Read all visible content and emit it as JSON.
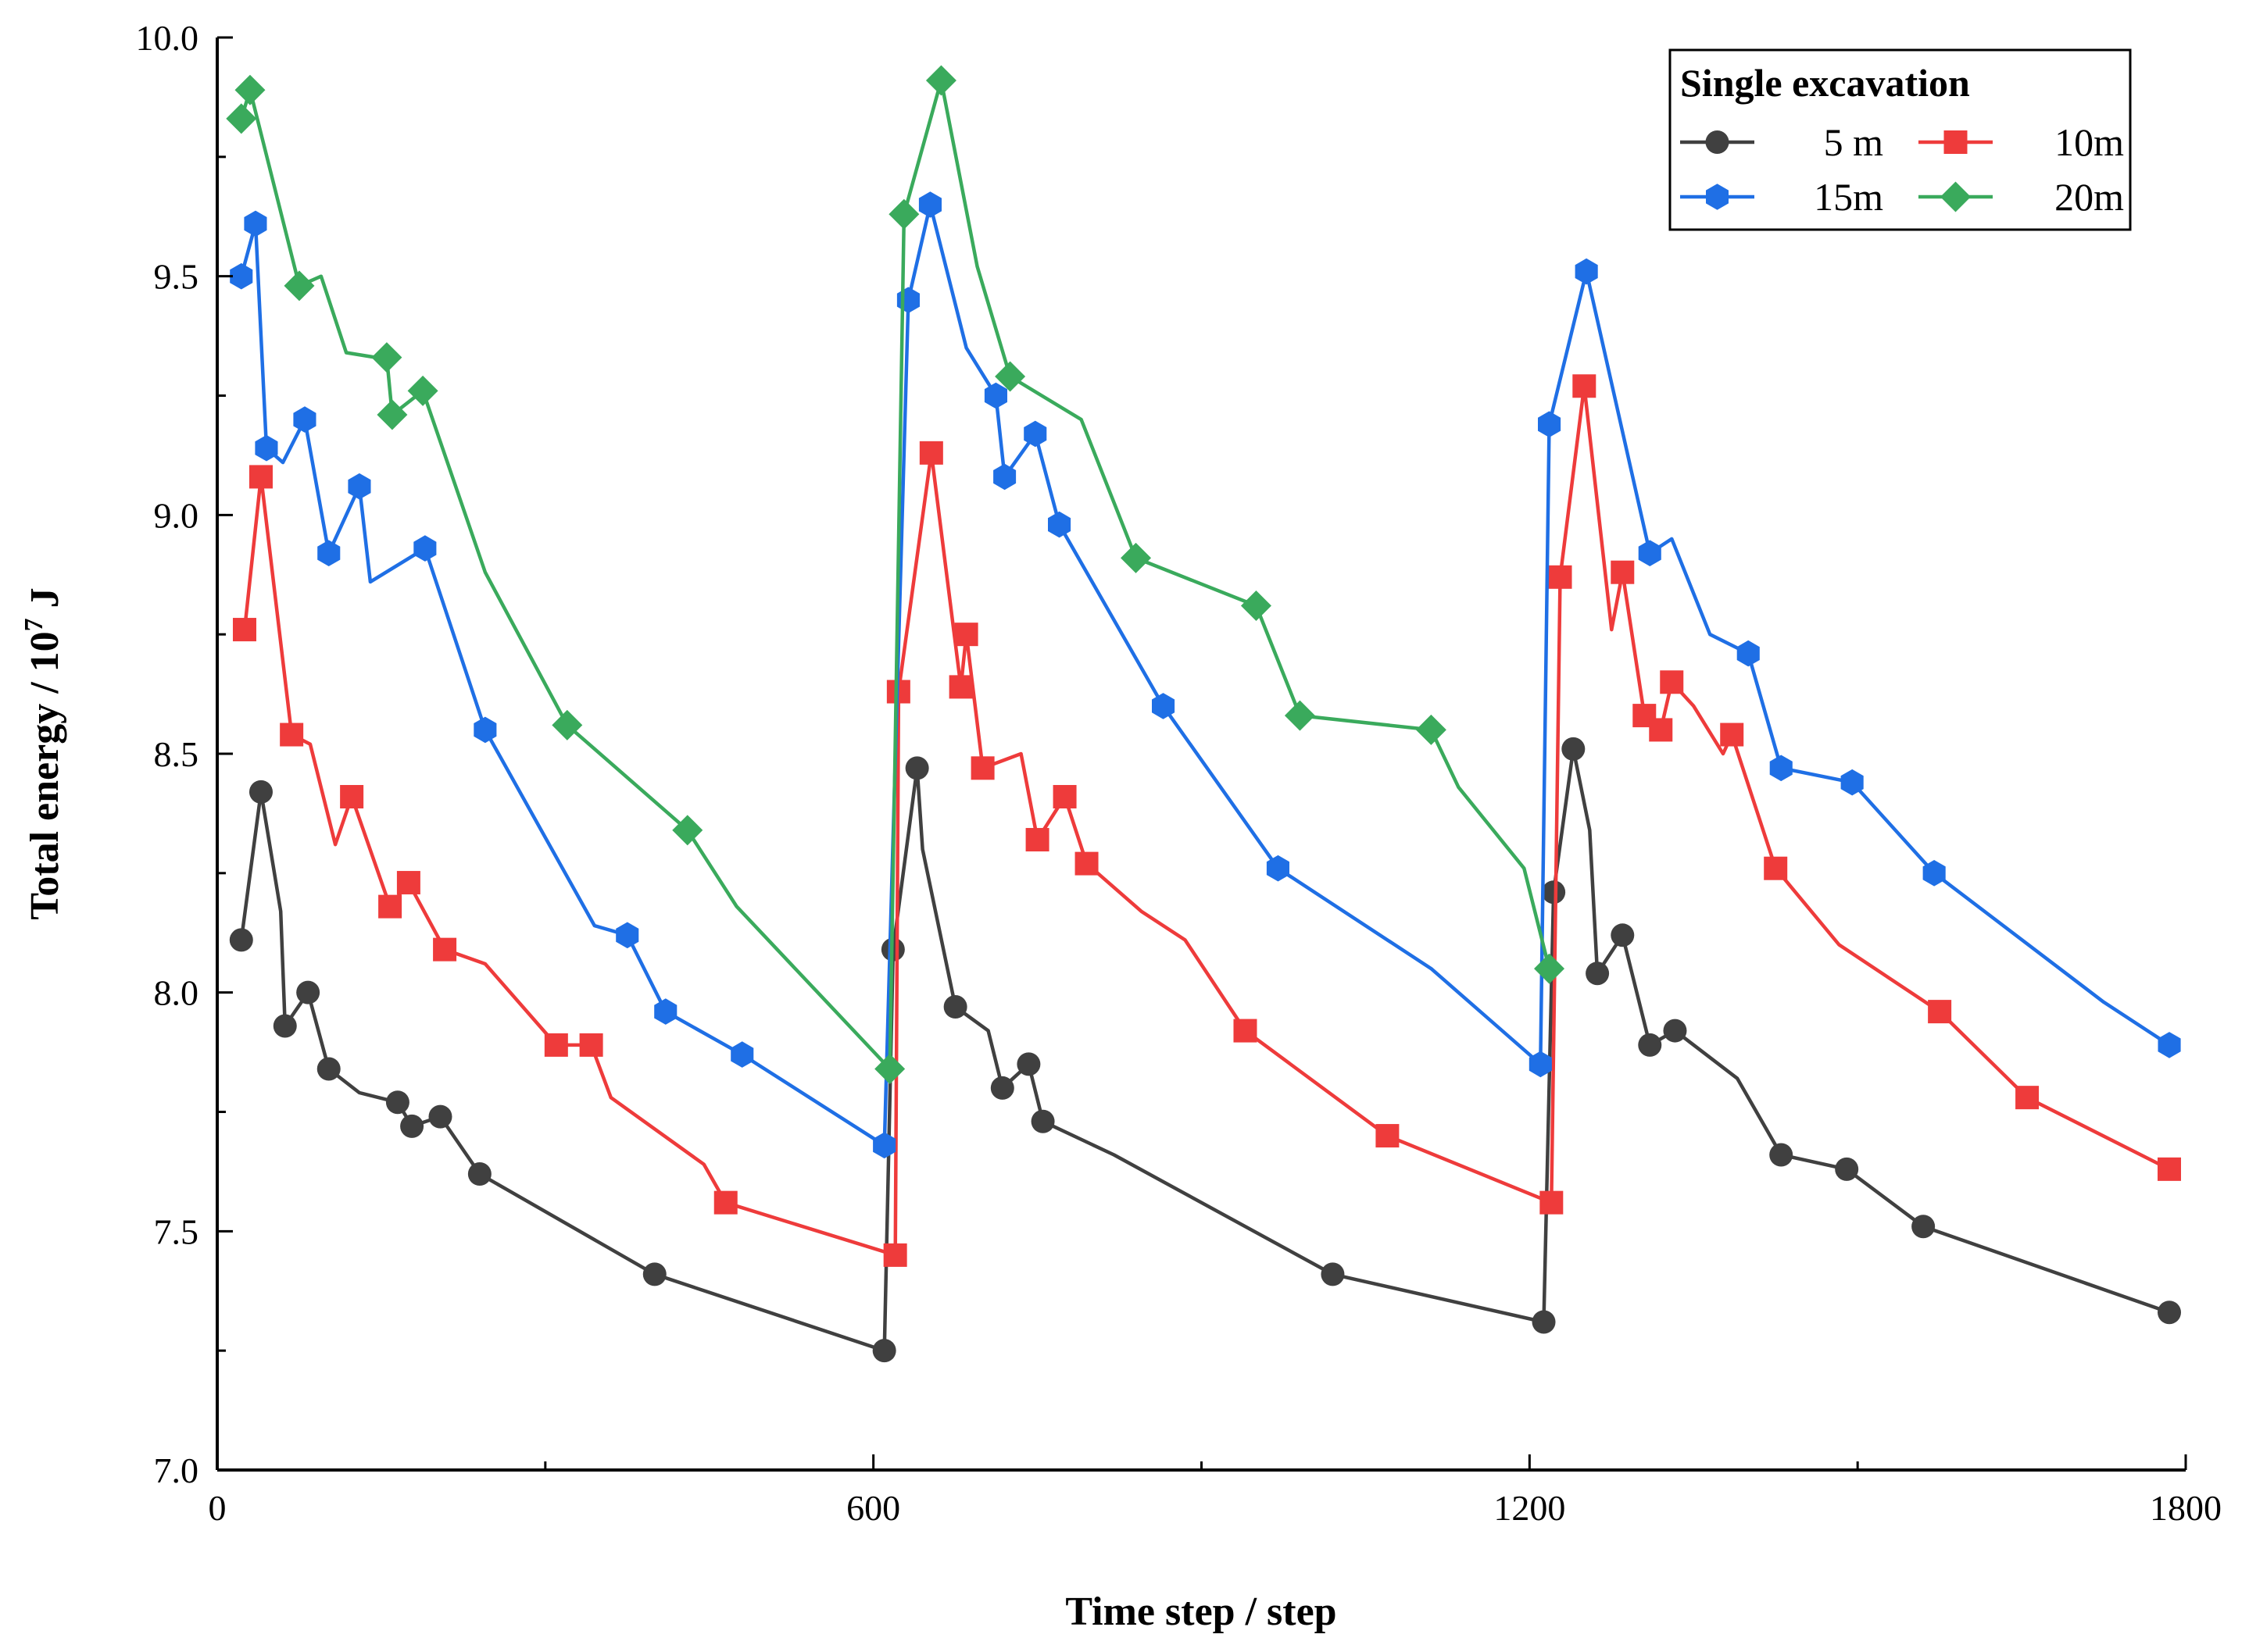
{
  "chart_data": {
    "type": "line",
    "title": "",
    "xlabel": "Time step / step",
    "ylabel_main": "Total energy / 10",
    "ylabel_exp": "7",
    "ylabel_unit": " J",
    "xlim": [
      0,
      1800
    ],
    "ylim": [
      7.0,
      10.0
    ],
    "xticks": [
      "0",
      "600",
      "1200",
      "1800"
    ],
    "yticks": [
      "7.0",
      "7.5",
      "8.0",
      "8.5",
      "9.0",
      "9.5",
      "10.0"
    ],
    "grid": false,
    "legend": {
      "title": "Single excavation",
      "position": "top-right"
    },
    "series": [
      {
        "name": "5 m",
        "color": "#404040",
        "marker": "circle",
        "line": [
          [
            22,
            8.11
          ],
          [
            40,
            8.42
          ],
          [
            58,
            8.17
          ],
          [
            62,
            7.93
          ],
          [
            83,
            8.0
          ],
          [
            102,
            7.84
          ],
          [
            130,
            7.79
          ],
          [
            165,
            7.77
          ],
          [
            178,
            7.72
          ],
          [
            204,
            7.74
          ],
          [
            240,
            7.62
          ],
          [
            400,
            7.41
          ],
          [
            610,
            7.25
          ],
          [
            618,
            8.09
          ],
          [
            640,
            8.47
          ],
          [
            645,
            8.3
          ],
          [
            675,
            7.97
          ],
          [
            705,
            7.92
          ],
          [
            718,
            7.8
          ],
          [
            742,
            7.85
          ],
          [
            755,
            7.73
          ],
          [
            820,
            7.66
          ],
          [
            1020,
            7.41
          ],
          [
            1213,
            7.31
          ],
          [
            1222,
            8.21
          ],
          [
            1240,
            8.51
          ],
          [
            1255,
            8.34
          ],
          [
            1262,
            8.04
          ],
          [
            1285,
            8.12
          ],
          [
            1310,
            7.89
          ],
          [
            1333,
            7.92
          ],
          [
            1390,
            7.82
          ],
          [
            1430,
            7.66
          ],
          [
            1490,
            7.63
          ],
          [
            1560,
            7.51
          ],
          [
            1785,
            7.33
          ]
        ],
        "markers": [
          [
            22,
            8.11
          ],
          [
            40,
            8.42
          ],
          [
            62,
            7.93
          ],
          [
            83,
            8.0
          ],
          [
            102,
            7.84
          ],
          [
            165,
            7.77
          ],
          [
            178,
            7.72
          ],
          [
            204,
            7.74
          ],
          [
            240,
            7.62
          ],
          [
            400,
            7.41
          ],
          [
            610,
            7.25
          ],
          [
            618,
            8.09
          ],
          [
            640,
            8.47
          ],
          [
            675,
            7.97
          ],
          [
            718,
            7.8
          ],
          [
            742,
            7.85
          ],
          [
            755,
            7.73
          ],
          [
            1020,
            7.41
          ],
          [
            1213,
            7.31
          ],
          [
            1222,
            8.21
          ],
          [
            1240,
            8.51
          ],
          [
            1262,
            8.04
          ],
          [
            1285,
            8.12
          ],
          [
            1310,
            7.89
          ],
          [
            1333,
            7.92
          ],
          [
            1430,
            7.66
          ],
          [
            1490,
            7.63
          ],
          [
            1560,
            7.51
          ],
          [
            1785,
            7.33
          ]
        ]
      },
      {
        "name": "10m",
        "color": "#ee3b3b",
        "marker": "square",
        "line": [
          [
            25,
            8.76
          ],
          [
            40,
            9.08
          ],
          [
            68,
            8.54
          ],
          [
            85,
            8.52
          ],
          [
            108,
            8.31
          ],
          [
            123,
            8.41
          ],
          [
            158,
            8.18
          ],
          [
            175,
            8.23
          ],
          [
            208,
            8.09
          ],
          [
            245,
            8.06
          ],
          [
            310,
            7.89
          ],
          [
            342,
            7.89
          ],
          [
            360,
            7.78
          ],
          [
            445,
            7.64
          ],
          [
            465,
            7.56
          ],
          [
            620,
            7.45
          ],
          [
            623,
            8.63
          ],
          [
            653,
            9.13
          ],
          [
            680,
            8.64
          ],
          [
            685,
            8.75
          ],
          [
            700,
            8.47
          ],
          [
            735,
            8.5
          ],
          [
            750,
            8.32
          ],
          [
            775,
            8.41
          ],
          [
            795,
            8.27
          ],
          [
            845,
            8.17
          ],
          [
            885,
            8.11
          ],
          [
            940,
            7.92
          ],
          [
            1070,
            7.7
          ],
          [
            1220,
            7.56
          ],
          [
            1228,
            8.87
          ],
          [
            1250,
            9.27
          ],
          [
            1275,
            8.76
          ],
          [
            1285,
            8.88
          ],
          [
            1305,
            8.58
          ],
          [
            1320,
            8.55
          ],
          [
            1330,
            8.65
          ],
          [
            1350,
            8.6
          ],
          [
            1377,
            8.5
          ],
          [
            1385,
            8.54
          ],
          [
            1425,
            8.26
          ],
          [
            1483,
            8.1
          ],
          [
            1575,
            7.96
          ],
          [
            1655,
            7.78
          ],
          [
            1785,
            7.63
          ]
        ],
        "markers": [
          [
            25,
            8.76
          ],
          [
            40,
            9.08
          ],
          [
            68,
            8.54
          ],
          [
            123,
            8.41
          ],
          [
            158,
            8.18
          ],
          [
            175,
            8.23
          ],
          [
            208,
            8.09
          ],
          [
            310,
            7.89
          ],
          [
            342,
            7.89
          ],
          [
            465,
            7.56
          ],
          [
            620,
            7.45
          ],
          [
            623,
            8.63
          ],
          [
            653,
            9.13
          ],
          [
            680,
            8.64
          ],
          [
            685,
            8.75
          ],
          [
            700,
            8.47
          ],
          [
            750,
            8.32
          ],
          [
            775,
            8.41
          ],
          [
            795,
            8.27
          ],
          [
            940,
            7.92
          ],
          [
            1070,
            7.7
          ],
          [
            1220,
            7.56
          ],
          [
            1228,
            8.87
          ],
          [
            1250,
            9.27
          ],
          [
            1285,
            8.88
          ],
          [
            1305,
            8.58
          ],
          [
            1320,
            8.55
          ],
          [
            1330,
            8.65
          ],
          [
            1385,
            8.54
          ],
          [
            1425,
            8.26
          ],
          [
            1575,
            7.96
          ],
          [
            1655,
            7.78
          ],
          [
            1785,
            7.63
          ]
        ]
      },
      {
        "name": "15m",
        "color": "#1f6fe5",
        "marker": "hexagon",
        "line": [
          [
            22,
            9.5
          ],
          [
            35,
            9.61
          ],
          [
            45,
            9.14
          ],
          [
            60,
            9.11
          ],
          [
            80,
            9.2
          ],
          [
            102,
            8.92
          ],
          [
            130,
            9.06
          ],
          [
            140,
            8.86
          ],
          [
            190,
            8.93
          ],
          [
            245,
            8.55
          ],
          [
            345,
            8.14
          ],
          [
            375,
            8.12
          ],
          [
            410,
            7.96
          ],
          [
            480,
            7.87
          ],
          [
            610,
            7.68
          ],
          [
            632,
            9.45
          ],
          [
            652,
            9.65
          ],
          [
            685,
            9.35
          ],
          [
            712,
            9.25
          ],
          [
            720,
            9.08
          ],
          [
            748,
            9.17
          ],
          [
            770,
            8.98
          ],
          [
            865,
            8.6
          ],
          [
            970,
            8.26
          ],
          [
            1110,
            8.05
          ],
          [
            1210,
            7.85
          ],
          [
            1218,
            9.19
          ],
          [
            1252,
            9.51
          ],
          [
            1310,
            8.92
          ],
          [
            1330,
            8.95
          ],
          [
            1365,
            8.75
          ],
          [
            1400,
            8.71
          ],
          [
            1430,
            8.47
          ],
          [
            1495,
            8.44
          ],
          [
            1570,
            8.25
          ],
          [
            1725,
            7.98
          ],
          [
            1785,
            7.89
          ]
        ],
        "markers": [
          [
            22,
            9.5
          ],
          [
            35,
            9.61
          ],
          [
            45,
            9.14
          ],
          [
            80,
            9.2
          ],
          [
            102,
            8.92
          ],
          [
            130,
            9.06
          ],
          [
            190,
            8.93
          ],
          [
            245,
            8.55
          ],
          [
            375,
            8.12
          ],
          [
            410,
            7.96
          ],
          [
            480,
            7.87
          ],
          [
            610,
            7.68
          ],
          [
            632,
            9.45
          ],
          [
            652,
            9.65
          ],
          [
            712,
            9.25
          ],
          [
            720,
            9.08
          ],
          [
            748,
            9.17
          ],
          [
            770,
            8.98
          ],
          [
            865,
            8.6
          ],
          [
            970,
            8.26
          ],
          [
            1210,
            7.85
          ],
          [
            1218,
            9.19
          ],
          [
            1252,
            9.51
          ],
          [
            1310,
            8.92
          ],
          [
            1400,
            8.71
          ],
          [
            1430,
            8.47
          ],
          [
            1495,
            8.44
          ],
          [
            1570,
            8.25
          ],
          [
            1785,
            7.89
          ]
        ]
      },
      {
        "name": "20m",
        "color": "#3aaa5c",
        "marker": "diamond",
        "line": [
          [
            22,
            9.83
          ],
          [
            30,
            9.89
          ],
          [
            75,
            9.48
          ],
          [
            95,
            9.5
          ],
          [
            118,
            9.34
          ],
          [
            145,
            9.33
          ],
          [
            155,
            9.33
          ],
          [
            160,
            9.21
          ],
          [
            188,
            9.26
          ],
          [
            245,
            8.88
          ],
          [
            320,
            8.56
          ],
          [
            430,
            8.34
          ],
          [
            475,
            8.18
          ],
          [
            615,
            7.84
          ],
          [
            628,
            9.63
          ],
          [
            662,
            9.91
          ],
          [
            695,
            9.52
          ],
          [
            725,
            9.29
          ],
          [
            790,
            9.2
          ],
          [
            840,
            8.91
          ],
          [
            950,
            8.81
          ],
          [
            990,
            8.58
          ],
          [
            1110,
            8.55
          ],
          [
            1135,
            8.43
          ],
          [
            1195,
            8.26
          ],
          [
            1218,
            8.05
          ]
        ],
        "markers": [
          [
            22,
            9.83
          ],
          [
            30,
            9.89
          ],
          [
            75,
            9.48
          ],
          [
            155,
            9.33
          ],
          [
            160,
            9.21
          ],
          [
            188,
            9.26
          ],
          [
            320,
            8.56
          ],
          [
            430,
            8.34
          ],
          [
            615,
            7.84
          ],
          [
            628,
            9.63
          ],
          [
            662,
            9.91
          ],
          [
            725,
            9.29
          ],
          [
            840,
            8.91
          ],
          [
            950,
            8.81
          ],
          [
            990,
            8.58
          ],
          [
            1110,
            8.55
          ],
          [
            1218,
            8.05
          ]
        ]
      }
    ]
  }
}
